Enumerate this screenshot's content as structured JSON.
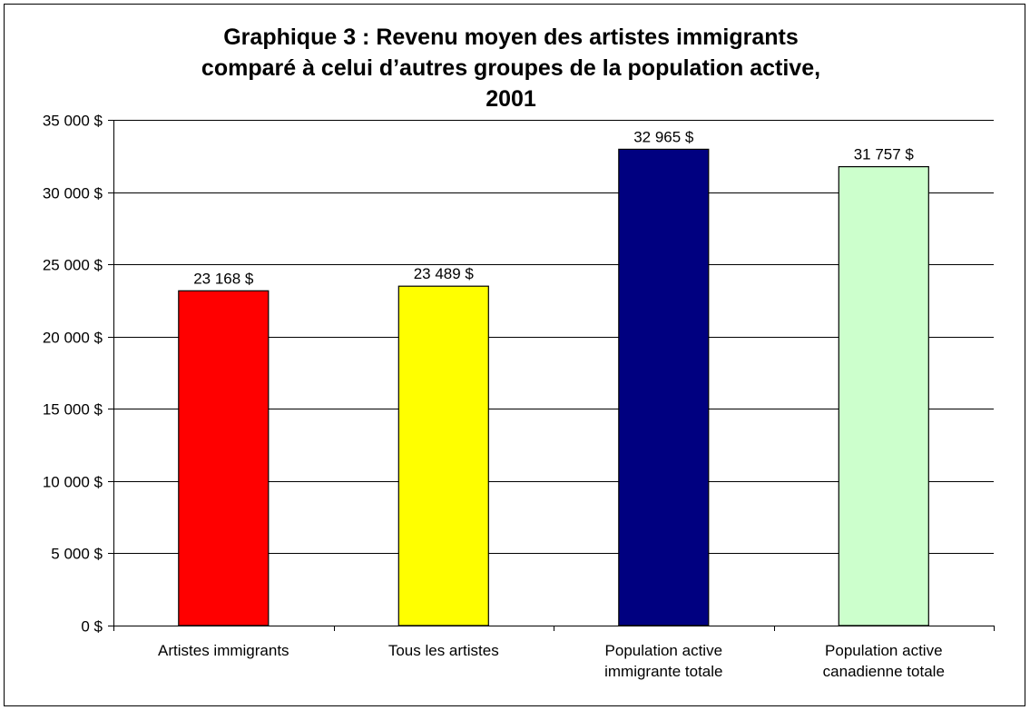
{
  "chart_data": {
    "type": "bar",
    "title_lines": [
      "Graphique 3 : Revenu moyen des artistes immigrants",
      "comparé à celui d’autres groupes de la population active,",
      "2001"
    ],
    "categories": [
      [
        "Artistes immigrants"
      ],
      [
        "Tous les artistes"
      ],
      [
        "Population active",
        "immigrante totale"
      ],
      [
        "Population active",
        "canadienne totale"
      ]
    ],
    "values": [
      23168,
      23489,
      32965,
      31757
    ],
    "value_labels": [
      "23 168 $",
      "23 489 $",
      "32 965 $",
      "31 757 $"
    ],
    "bar_colors": [
      "#FF0000",
      "#FFFF00",
      "#000080",
      "#CCFFCC"
    ],
    "ylim": [
      0,
      35000
    ],
    "yticks": [
      0,
      5000,
      10000,
      15000,
      20000,
      25000,
      30000,
      35000
    ],
    "ytick_labels": [
      "0 $",
      "5 000 $",
      "10 000 $",
      "15 000 $",
      "20 000 $",
      "25 000 $",
      "30 000 $",
      "35 000 $"
    ],
    "grid": true,
    "legend": "none",
    "xlabel": "",
    "ylabel": ""
  }
}
